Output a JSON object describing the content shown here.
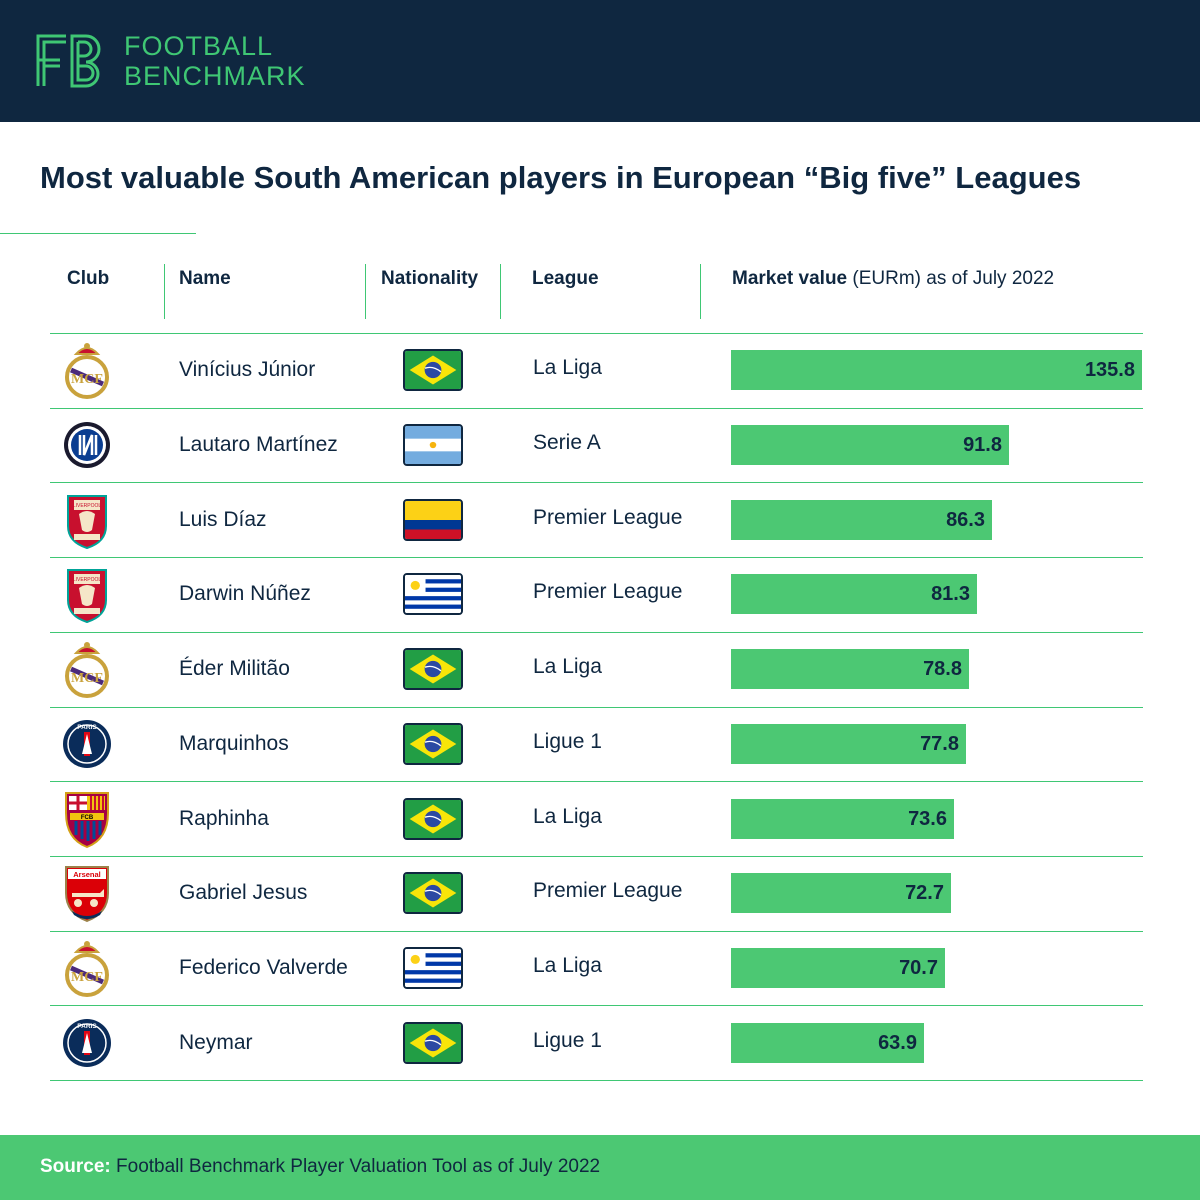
{
  "header": {
    "brand_line1": "FOOTBALL",
    "brand_line2": "BENCHMARK",
    "logo_letters": "FB",
    "background_color": "#0f2740",
    "accent_color": "#3fc774"
  },
  "title": "Most valuable South American players in European “Big five” Leagues",
  "columns": {
    "club": "Club",
    "name": "Name",
    "nationality": "Nationality",
    "league": "League",
    "value_bold": "Market value",
    "value_rest": "(EURm) as of July 2022"
  },
  "chart_data": {
    "type": "bar",
    "orientation": "horizontal",
    "bar_color": "#4cc873",
    "categories": [
      "Vinícius Júnior",
      "Lautaro Martínez",
      "Luis Díaz",
      "Darwin Núñez",
      "Éder Militão",
      "Marquinhos",
      "Raphinha",
      "Gabriel Jesus",
      "Federico Valverde",
      "Neymar"
    ],
    "values": [
      135.8,
      91.8,
      86.3,
      81.3,
      78.8,
      77.8,
      73.6,
      72.7,
      70.7,
      63.9
    ],
    "xlim": [
      0,
      135.8
    ],
    "grid": false,
    "legend": "none"
  },
  "rows": [
    {
      "club": "real-madrid",
      "club_icon": "real-madrid-crest-icon",
      "name": "Vinícius Júnior",
      "flag": "brazil",
      "league": "La Liga",
      "value": 135.8,
      "value_label": "135.8"
    },
    {
      "club": "inter",
      "club_icon": "inter-crest-icon",
      "name": "Lautaro Martínez",
      "flag": "argentina",
      "league": "Serie A",
      "value": 91.8,
      "value_label": "91.8"
    },
    {
      "club": "liverpool",
      "club_icon": "liverpool-crest-icon",
      "name": "Luis Díaz",
      "flag": "colombia",
      "league": "Premier League",
      "value": 86.3,
      "value_label": "86.3"
    },
    {
      "club": "liverpool",
      "club_icon": "liverpool-crest-icon",
      "name": "Darwin Núñez",
      "flag": "uruguay",
      "league": "Premier League",
      "value": 81.3,
      "value_label": "81.3"
    },
    {
      "club": "real-madrid",
      "club_icon": "real-madrid-crest-icon",
      "name": "Éder Militão",
      "flag": "brazil",
      "league": "La Liga",
      "value": 78.8,
      "value_label": "78.8"
    },
    {
      "club": "psg",
      "club_icon": "psg-crest-icon",
      "name": "Marquinhos",
      "flag": "brazil",
      "league": "Ligue 1",
      "value": 77.8,
      "value_label": "77.8"
    },
    {
      "club": "barcelona",
      "club_icon": "barcelona-crest-icon",
      "name": "Raphinha",
      "flag": "brazil",
      "league": "La Liga",
      "value": 73.6,
      "value_label": "73.6"
    },
    {
      "club": "arsenal",
      "club_icon": "arsenal-crest-icon",
      "name": "Gabriel Jesus",
      "flag": "brazil",
      "league": "Premier League",
      "value": 72.7,
      "value_label": "72.7"
    },
    {
      "club": "real-madrid",
      "club_icon": "real-madrid-crest-icon",
      "name": "Federico Valverde",
      "flag": "uruguay",
      "league": "La Liga",
      "value": 70.7,
      "value_label": "70.7"
    },
    {
      "club": "psg",
      "club_icon": "psg-crest-icon",
      "name": "Neymar",
      "flag": "brazil",
      "league": "Ligue 1",
      "value": 63.9,
      "value_label": "63.9"
    }
  ],
  "crest_text": {
    "liverpool": "LIVERPOOL",
    "psg": "PARIS",
    "barcelona": "FCB",
    "arsenal": "Arsenal"
  },
  "footer": {
    "source_label": "Source:",
    "source_text": "Football Benchmark Player Valuation Tool as of July 2022",
    "background_color": "#4cc873"
  }
}
